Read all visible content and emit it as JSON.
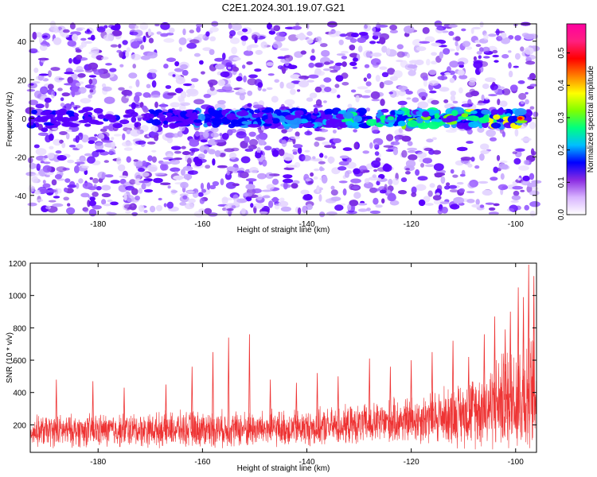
{
  "title": "C2E1.2024.301.19.07.G21",
  "chart_data": [
    {
      "type": "heatmap",
      "title": "C2E1.2024.301.19.07.G21",
      "xlabel": "Height of straight line (km)",
      "ylabel": "Frequency (Hz)",
      "xlim": [
        -193,
        -96
      ],
      "ylim": [
        -50,
        49
      ],
      "x_ticks": [
        -180,
        -160,
        -140,
        -120,
        -100
      ],
      "y_ticks": [
        -40,
        -20,
        0,
        20,
        40
      ],
      "colorbar": {
        "label": "Normalized spectral amplitude",
        "range": [
          0.0,
          0.59
        ],
        "ticks": [
          0.0,
          0.1,
          0.2,
          0.3,
          0.4,
          0.5
        ],
        "tick_labels": [
          "0.0",
          "0.1",
          "0.2",
          "0.3",
          "0.4",
          "0.5"
        ],
        "colors": [
          "#ffffff",
          "#dcc8ff",
          "#8a2be2",
          "#5a00ff",
          "#0000ff",
          "#00bfff",
          "#00ff80",
          "#80ff00",
          "#ffff00",
          "#ff8000",
          "#ff0000",
          "#ff00a0"
        ]
      },
      "signal_band": {
        "frequency_hz": 0,
        "start_height_km": -165,
        "end_height_km": -97,
        "peak_amplitude_near_km": -99
      },
      "background_noise": {
        "dominant_color": "#7a2be2",
        "speckle_colors": [
          "#e6d8ff",
          "#c7a8ff",
          "#9a5cff",
          "#7a2be2",
          "#5a00ff"
        ]
      }
    },
    {
      "type": "line",
      "xlabel": "Height of straight line (km)",
      "ylabel": "SNR (10 * v/v)",
      "xlim": [
        -193,
        -96
      ],
      "ylim": [
        30,
        1200
      ],
      "x_ticks": [
        -180,
        -160,
        -140,
        -120,
        -100
      ],
      "y_ticks": [
        200,
        400,
        600,
        800,
        1000,
        1200
      ],
      "color": "#ee3333",
      "series_profile": [
        {
          "x": -193,
          "mean": 160,
          "spread": 110
        },
        {
          "x": -180,
          "mean": 165,
          "spread": 120
        },
        {
          "x": -170,
          "mean": 170,
          "spread": 120
        },
        {
          "x": -160,
          "mean": 175,
          "spread": 130
        },
        {
          "x": -150,
          "mean": 175,
          "spread": 130
        },
        {
          "x": -140,
          "mean": 180,
          "spread": 130
        },
        {
          "x": -130,
          "mean": 200,
          "spread": 140
        },
        {
          "x": -120,
          "mean": 230,
          "spread": 170
        },
        {
          "x": -110,
          "mean": 270,
          "spread": 230
        },
        {
          "x": -104,
          "mean": 330,
          "spread": 320
        },
        {
          "x": -100,
          "mean": 380,
          "spread": 420
        },
        {
          "x": -96,
          "mean": 380,
          "spread": 420
        }
      ],
      "spikes": [
        {
          "x": -188,
          "y": 480
        },
        {
          "x": -181,
          "y": 470
        },
        {
          "x": -175,
          "y": 430
        },
        {
          "x": -167,
          "y": 450
        },
        {
          "x": -162,
          "y": 560
        },
        {
          "x": -158,
          "y": 650
        },
        {
          "x": -155,
          "y": 740
        },
        {
          "x": -151,
          "y": 760
        },
        {
          "x": -147,
          "y": 480
        },
        {
          "x": -142,
          "y": 460
        },
        {
          "x": -138,
          "y": 520
        },
        {
          "x": -134,
          "y": 500
        },
        {
          "x": -128,
          "y": 610
        },
        {
          "x": -124,
          "y": 560
        },
        {
          "x": -120,
          "y": 600
        },
        {
          "x": -116,
          "y": 650
        },
        {
          "x": -112,
          "y": 720
        },
        {
          "x": -109,
          "y": 620
        },
        {
          "x": -106,
          "y": 760
        },
        {
          "x": -104,
          "y": 870
        },
        {
          "x": -102,
          "y": 790
        },
        {
          "x": -101,
          "y": 900
        },
        {
          "x": -99.5,
          "y": 1050
        },
        {
          "x": -98.5,
          "y": 990
        },
        {
          "x": -97.5,
          "y": 1190
        },
        {
          "x": -96.5,
          "y": 1120
        }
      ]
    }
  ]
}
